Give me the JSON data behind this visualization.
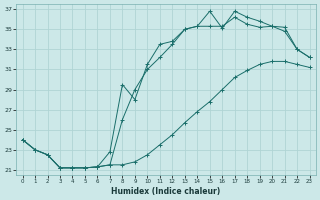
{
  "xlabel": "Humidex (Indice chaleur)",
  "bg_color": "#cce8e8",
  "grid_color": "#b0d4d4",
  "line_color": "#1a6e6a",
  "xlim": [
    -0.5,
    23.5
  ],
  "ylim": [
    20.5,
    37.5
  ],
  "xticks": [
    0,
    1,
    2,
    3,
    4,
    5,
    6,
    7,
    8,
    9,
    10,
    11,
    12,
    13,
    14,
    15,
    16,
    17,
    18,
    19,
    20,
    21,
    22,
    23
  ],
  "yticks": [
    21,
    23,
    25,
    27,
    29,
    31,
    33,
    35,
    37
  ],
  "line1_x": [
    0,
    1,
    2,
    3,
    4,
    5,
    6,
    7,
    8,
    9,
    10,
    11,
    12,
    13,
    14,
    15,
    16,
    17,
    18,
    19,
    20,
    21,
    22,
    23
  ],
  "line1_y": [
    24.0,
    23.0,
    22.5,
    21.2,
    21.2,
    21.2,
    21.3,
    21.5,
    26.0,
    29.0,
    31.0,
    32.2,
    33.5,
    35.0,
    35.3,
    35.3,
    35.3,
    36.2,
    35.5,
    35.2,
    35.3,
    34.8,
    33.0,
    32.2
  ],
  "line2_x": [
    0,
    1,
    2,
    3,
    4,
    5,
    6,
    7,
    8,
    9,
    10,
    11,
    12,
    13,
    14,
    15,
    16,
    17,
    18,
    19,
    20,
    21,
    22,
    23
  ],
  "line2_y": [
    24.0,
    23.0,
    22.5,
    21.2,
    21.2,
    21.2,
    21.3,
    22.8,
    29.5,
    28.0,
    31.5,
    33.5,
    33.8,
    35.0,
    35.3,
    36.8,
    35.1,
    36.8,
    36.2,
    35.8,
    35.3,
    35.2,
    33.0,
    32.2
  ],
  "line3_x": [
    0,
    1,
    2,
    3,
    4,
    5,
    6,
    7,
    8,
    9,
    10,
    11,
    12,
    13,
    14,
    15,
    16,
    17,
    18,
    19,
    20,
    21,
    22,
    23
  ],
  "line3_y": [
    24.0,
    23.0,
    22.5,
    21.2,
    21.2,
    21.2,
    21.3,
    21.5,
    21.5,
    21.8,
    22.5,
    23.5,
    24.5,
    25.7,
    26.8,
    27.8,
    29.0,
    30.2,
    30.9,
    31.5,
    31.8,
    31.8,
    31.5,
    31.2
  ]
}
